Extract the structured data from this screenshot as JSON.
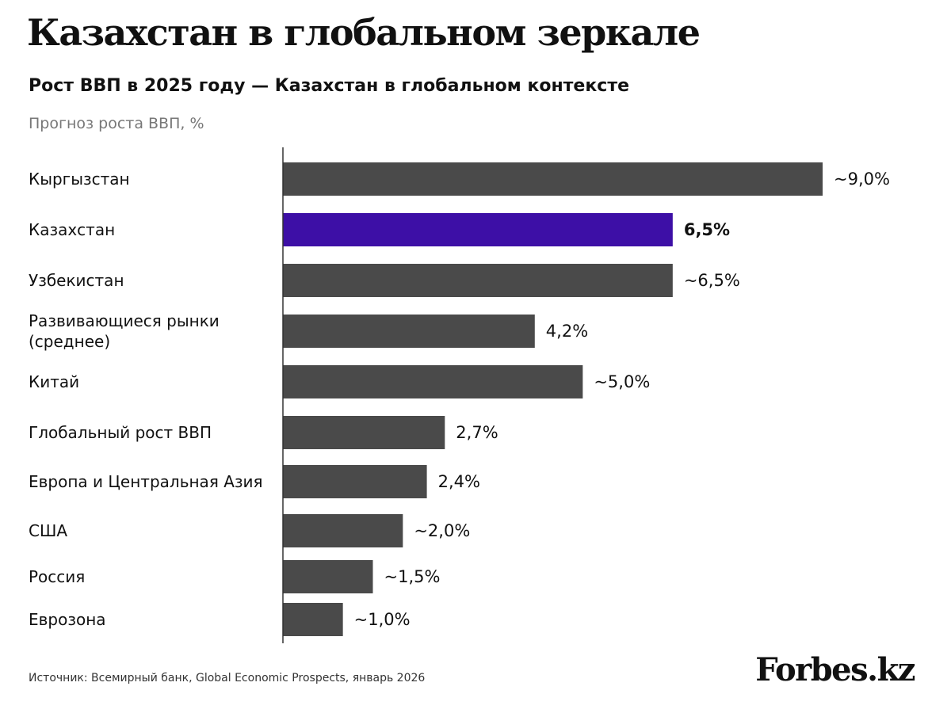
{
  "header": {
    "title": "Казахстан в глобальном зеркале",
    "subtitle": "Рост ВВП в 2025 году — Казахстан в глобальном контексте",
    "unit_label": "Прогноз роста ВВП, %"
  },
  "colors": {
    "bar_default": "#4a4a4a",
    "bar_highlight": "#3d0fa6",
    "axis": "#333333"
  },
  "chart_data": {
    "type": "bar",
    "orientation": "horizontal",
    "title": "Рост ВВП в 2025 году — Казахстан в глобальном контексте",
    "xlabel": "Прогноз роста ВВП, %",
    "ylabel": "",
    "xlim": [
      0,
      9.0
    ],
    "grid": false,
    "categories": [
      [
        "Кыргызстан"
      ],
      [
        "Казахстан"
      ],
      [
        "Узбекистан"
      ],
      [
        "Развивающиеся рынки",
        "(среднее)"
      ],
      [
        "Китай"
      ],
      [
        "Глобальный рост ВВП"
      ],
      [
        "Европа и Центральная Азия"
      ],
      [
        "США"
      ],
      [
        "Россия"
      ],
      [
        "Еврозона"
      ]
    ],
    "values": [
      9.0,
      6.5,
      6.5,
      4.2,
      5.0,
      2.7,
      2.4,
      2.0,
      1.5,
      1.0
    ],
    "value_labels": [
      "~9,0%",
      "6,5%",
      "~6,5%",
      "4,2%",
      "~5,0%",
      "2,7%",
      "2,4%",
      "~2,0%",
      "~1,5%",
      "~1,0%"
    ],
    "highlight_index": 1
  },
  "footer": {
    "source": "Источник: Всемирный банк, Global Economic Prospects, январь 2026",
    "logo": "Forbes.kz"
  }
}
